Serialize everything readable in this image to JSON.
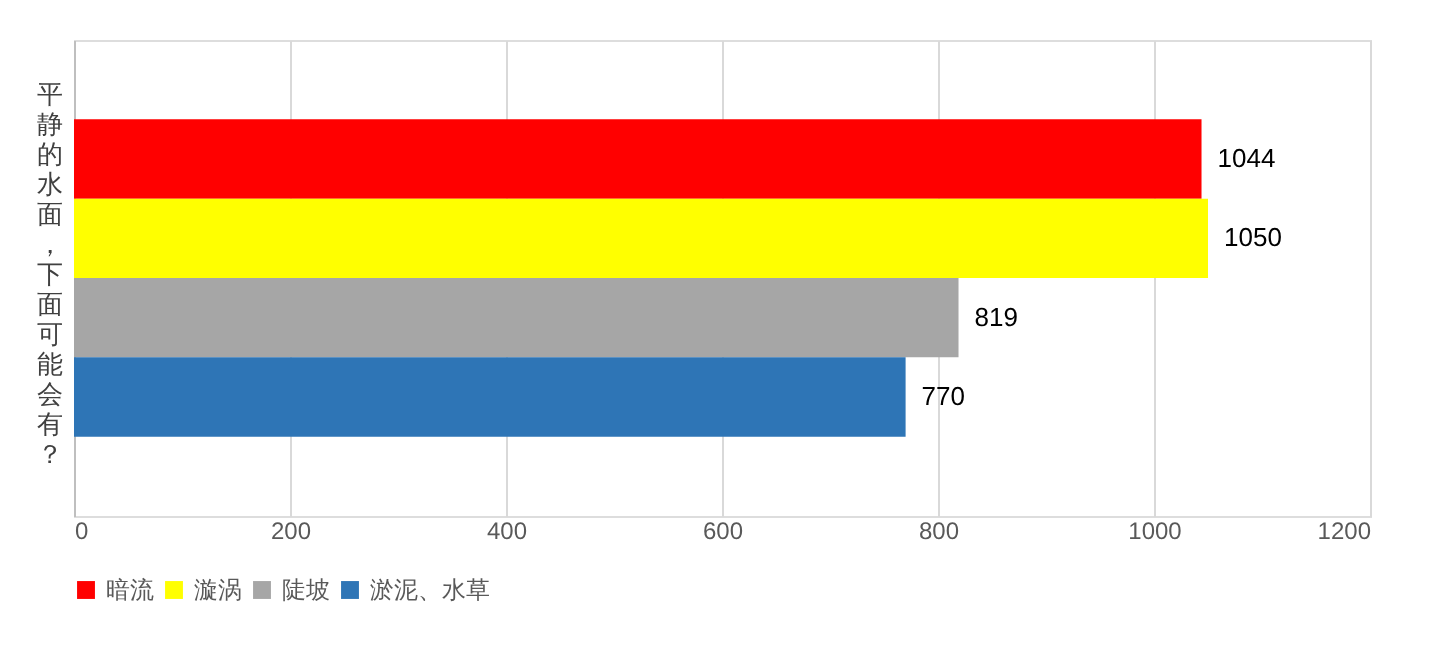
{
  "chart_data": {
    "type": "bar",
    "orientation": "horizontal",
    "categories": [
      "平静的水面，下面可能会有？"
    ],
    "series": [
      {
        "name": "暗流",
        "color": "#ff0000",
        "values": [
          1044
        ]
      },
      {
        "name": "漩涡",
        "color": "#ffff00",
        "values": [
          1050
        ]
      },
      {
        "name": "陡坡",
        "color": "#a6a6a6",
        "values": [
          819
        ]
      },
      {
        "name": "淤泥、水草",
        "color": "#2e75b6",
        "values": [
          770
        ]
      }
    ],
    "xlim": [
      0,
      1200
    ],
    "xticks": [
      0,
      200,
      400,
      600,
      800,
      1000,
      1200
    ],
    "grid": "x",
    "legend": "bottom",
    "data_labels": true
  }
}
